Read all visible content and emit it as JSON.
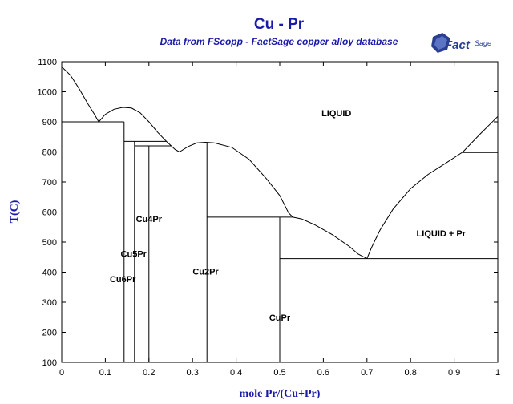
{
  "chart_data": {
    "type": "line",
    "title": "Cu - Pr",
    "subtitle": "Data from FScopp - FactSage copper alloy database",
    "xlabel": "mole Pr/(Cu+Pr)",
    "ylabel": "T(C)",
    "xlim": [
      0,
      1
    ],
    "ylim": [
      100,
      1100
    ],
    "xticks": [
      "0",
      "0.1",
      "0.2",
      "0.3",
      "0.4",
      "0.5",
      "0.6",
      "0.7",
      "0.8",
      "0.9",
      "1"
    ],
    "yticks": [
      "100",
      "200",
      "300",
      "400",
      "500",
      "600",
      "700",
      "800",
      "900",
      "1000",
      "1100"
    ],
    "grid": false,
    "series": [
      {
        "points": [
          [
            0,
            1083
          ],
          [
            0.02,
            1055
          ],
          [
            0.04,
            1010
          ],
          [
            0.06,
            960
          ],
          [
            0.075,
            925
          ],
          [
            0.085,
            900
          ]
        ]
      },
      {
        "points": [
          [
            0.085,
            900
          ],
          [
            0.1,
            925
          ],
          [
            0.12,
            942
          ],
          [
            0.14,
            948
          ],
          [
            0.16,
            946
          ],
          [
            0.18,
            930
          ],
          [
            0.2,
            900
          ],
          [
            0.22,
            865
          ],
          [
            0.24,
            835
          ],
          [
            0.26,
            808
          ],
          [
            0.27,
            800
          ]
        ]
      },
      {
        "points": [
          [
            0.27,
            800
          ],
          [
            0.29,
            818
          ],
          [
            0.31,
            830
          ],
          [
            0.33,
            832
          ],
          [
            0.35,
            830
          ],
          [
            0.39,
            815
          ],
          [
            0.43,
            775
          ],
          [
            0.47,
            710
          ],
          [
            0.5,
            655
          ],
          [
            0.52,
            598
          ],
          [
            0.53,
            583
          ]
        ]
      },
      {
        "points": [
          [
            0.53,
            583
          ],
          [
            0.55,
            577
          ],
          [
            0.58,
            558
          ],
          [
            0.62,
            525
          ],
          [
            0.66,
            485
          ],
          [
            0.68,
            460
          ],
          [
            0.7,
            445
          ]
        ]
      },
      {
        "points": [
          [
            0.7,
            445
          ],
          [
            0.71,
            480
          ],
          [
            0.73,
            540
          ],
          [
            0.76,
            610
          ],
          [
            0.8,
            678
          ],
          [
            0.84,
            725
          ],
          [
            0.88,
            762
          ],
          [
            0.92,
            800
          ],
          [
            0.96,
            860
          ],
          [
            1,
            918
          ]
        ]
      },
      {
        "points": [
          [
            0,
            900
          ],
          [
            0.143,
            900
          ]
        ]
      },
      {
        "points": [
          [
            0.143,
            100
          ],
          [
            0.143,
            900
          ]
        ]
      },
      {
        "points": [
          [
            0.143,
            835
          ],
          [
            0.24,
            835
          ]
        ]
      },
      {
        "points": [
          [
            0.167,
            100
          ],
          [
            0.167,
            835
          ]
        ]
      },
      {
        "points": [
          [
            0.167,
            820
          ],
          [
            0.25,
            820
          ]
        ]
      },
      {
        "points": [
          [
            0.2,
            100
          ],
          [
            0.2,
            820
          ]
        ]
      },
      {
        "points": [
          [
            0.2,
            800
          ],
          [
            0.333,
            800
          ]
        ]
      },
      {
        "points": [
          [
            0.333,
            100
          ],
          [
            0.333,
            832
          ]
        ]
      },
      {
        "points": [
          [
            0.333,
            583
          ],
          [
            0.53,
            583
          ]
        ]
      },
      {
        "points": [
          [
            0.5,
            100
          ],
          [
            0.5,
            583
          ]
        ]
      },
      {
        "points": [
          [
            0.5,
            445
          ],
          [
            1,
            445
          ]
        ]
      },
      {
        "points": [
          [
            0.92,
            798
          ],
          [
            1,
            798
          ]
        ]
      }
    ],
    "annotations": [
      {
        "text": "LIQUID",
        "x": 0.63,
        "y": 930
      },
      {
        "text": "LIQUID + Pr",
        "x": 0.87,
        "y": 530
      },
      {
        "text": "Cu4Pr",
        "x": 0.2,
        "y": 578
      },
      {
        "text": "Cu5Pr",
        "x": 0.165,
        "y": 462
      },
      {
        "text": "Cu6Pr",
        "x": 0.14,
        "y": 377
      },
      {
        "text": "Cu2Pr",
        "x": 0.33,
        "y": 403
      },
      {
        "text": "CuPr",
        "x": 0.5,
        "y": 250
      }
    ]
  },
  "logo": {
    "text": "FactSage"
  }
}
